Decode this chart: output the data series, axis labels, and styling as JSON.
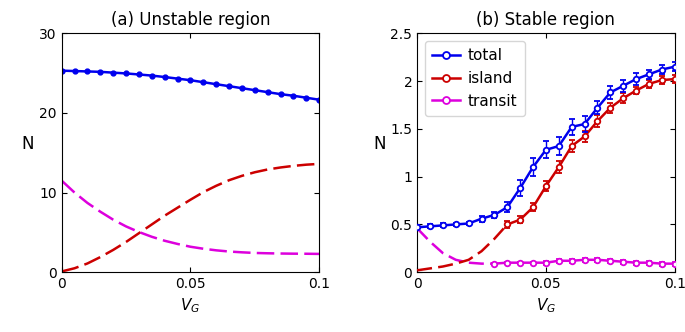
{
  "title_a": "(a) Unstable region",
  "title_b": "(b) Stable region",
  "ylabel": "N",
  "a_vg": [
    0.0,
    0.005,
    0.01,
    0.015,
    0.02,
    0.025,
    0.03,
    0.035,
    0.04,
    0.045,
    0.05,
    0.055,
    0.06,
    0.065,
    0.07,
    0.075,
    0.08,
    0.085,
    0.09,
    0.095,
    0.1
  ],
  "a_total": [
    25.3,
    25.25,
    25.2,
    25.15,
    25.05,
    24.95,
    24.82,
    24.68,
    24.5,
    24.3,
    24.1,
    23.85,
    23.6,
    23.35,
    23.1,
    22.85,
    22.6,
    22.35,
    22.15,
    21.9,
    21.65
  ],
  "a_island": [
    0.1,
    0.5,
    1.1,
    1.9,
    2.8,
    3.8,
    4.9,
    6.0,
    7.1,
    8.1,
    9.1,
    10.05,
    10.85,
    11.55,
    12.1,
    12.55,
    12.9,
    13.15,
    13.35,
    13.5,
    13.6
  ],
  "a_transit": [
    11.5,
    10.0,
    8.7,
    7.6,
    6.6,
    5.75,
    5.05,
    4.45,
    3.95,
    3.55,
    3.2,
    2.95,
    2.75,
    2.6,
    2.5,
    2.42,
    2.38,
    2.35,
    2.33,
    2.32,
    2.3
  ],
  "b_vg": [
    0.0,
    0.005,
    0.01,
    0.015,
    0.02,
    0.025,
    0.03,
    0.035,
    0.04,
    0.045,
    0.05,
    0.055,
    0.06,
    0.065,
    0.07,
    0.075,
    0.08,
    0.085,
    0.09,
    0.095,
    0.1
  ],
  "b_total": [
    0.47,
    0.48,
    0.49,
    0.5,
    0.51,
    0.56,
    0.6,
    0.68,
    0.88,
    1.1,
    1.28,
    1.32,
    1.52,
    1.55,
    1.72,
    1.88,
    1.95,
    2.02,
    2.07,
    2.12,
    2.15
  ],
  "b_total_err": [
    0.02,
    0.02,
    0.02,
    0.02,
    0.02,
    0.03,
    0.03,
    0.05,
    0.08,
    0.09,
    0.09,
    0.09,
    0.08,
    0.08,
    0.07,
    0.07,
    0.06,
    0.06,
    0.05,
    0.05,
    0.05
  ],
  "b_island_dashed_vg": [
    0.0,
    0.005,
    0.01,
    0.015,
    0.02,
    0.025,
    0.03,
    0.035
  ],
  "b_island_dashed": [
    0.02,
    0.04,
    0.06,
    0.09,
    0.13,
    0.22,
    0.35,
    0.5
  ],
  "b_island_solid_vg": [
    0.035,
    0.04,
    0.045,
    0.05,
    0.055,
    0.06,
    0.065,
    0.07,
    0.075,
    0.08,
    0.085,
    0.09,
    0.095,
    0.1
  ],
  "b_island_solid": [
    0.5,
    0.55,
    0.68,
    0.9,
    1.1,
    1.32,
    1.42,
    1.58,
    1.72,
    1.82,
    1.9,
    1.97,
    2.01,
    2.02
  ],
  "b_island_solid_err": [
    0.04,
    0.04,
    0.04,
    0.05,
    0.06,
    0.06,
    0.06,
    0.06,
    0.05,
    0.05,
    0.04,
    0.04,
    0.04,
    0.04
  ],
  "b_transit_dashed_vg": [
    0.0,
    0.005,
    0.01,
    0.015,
    0.02,
    0.025,
    0.03
  ],
  "b_transit_dashed": [
    0.46,
    0.32,
    0.2,
    0.13,
    0.1,
    0.09,
    0.09
  ],
  "b_transit_solid_vg": [
    0.03,
    0.035,
    0.04,
    0.045,
    0.05,
    0.055,
    0.06,
    0.065,
    0.07,
    0.075,
    0.08,
    0.085,
    0.09,
    0.095,
    0.1
  ],
  "b_transit_solid": [
    0.09,
    0.1,
    0.1,
    0.1,
    0.1,
    0.12,
    0.12,
    0.13,
    0.13,
    0.12,
    0.11,
    0.1,
    0.1,
    0.09,
    0.09
  ],
  "b_transit_solid_err": [
    0.01,
    0.01,
    0.01,
    0.01,
    0.02,
    0.02,
    0.02,
    0.02,
    0.02,
    0.02,
    0.02,
    0.02,
    0.02,
    0.02,
    0.02
  ],
  "color_blue": "#0000ee",
  "color_red": "#cc0000",
  "color_magenta": "#dd00dd",
  "ylim_a": [
    0,
    30
  ],
  "ylim_b": [
    0,
    2.5
  ],
  "xlim": [
    0,
    0.1
  ]
}
